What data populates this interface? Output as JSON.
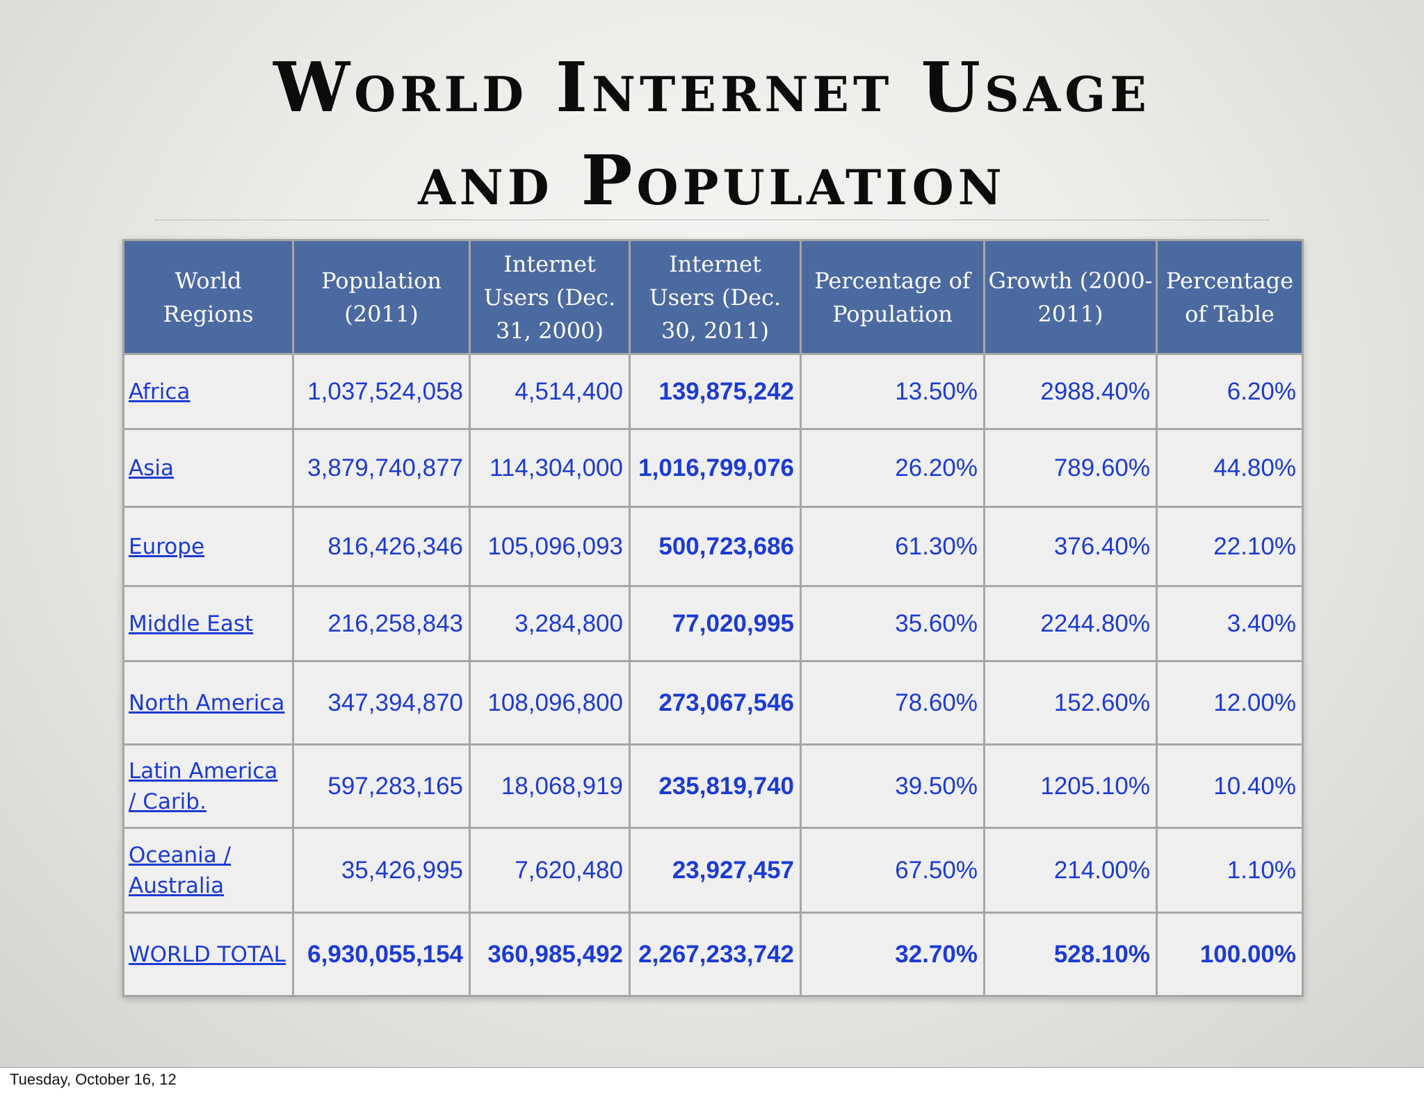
{
  "slide": {
    "title_line1": "World Internet Usage",
    "title_line2": "and Population",
    "footer_date": "Tuesday, October 16, 12"
  },
  "table": {
    "headers": [
      "World Regions",
      "Population (2011)",
      "Internet Users (Dec. 31, 2000)",
      "Internet Users (Dec. 30, 2011)",
      "Percentage of Population",
      "Growth (2000-2011)",
      "Percentage of Table"
    ],
    "rows": [
      {
        "region": "Africa",
        "population": "1,037,524,058",
        "users_2000": "4,514,400",
        "users_2011": "139,875,242",
        "pct_population": "13.50%",
        "growth": "2988.40%",
        "pct_table": "6.20%"
      },
      {
        "region": "Asia",
        "population": "3,879,740,877",
        "users_2000": "114,304,000",
        "users_2011": "1,016,799,076",
        "pct_population": "26.20%",
        "growth": "789.60%",
        "pct_table": "44.80%"
      },
      {
        "region": "Europe",
        "population": "816,426,346",
        "users_2000": "105,096,093",
        "users_2011": "500,723,686",
        "pct_population": "61.30%",
        "growth": "376.40%",
        "pct_table": "22.10%"
      },
      {
        "region": "Middle East",
        "population": "216,258,843",
        "users_2000": "3,284,800",
        "users_2011": "77,020,995",
        "pct_population": "35.60%",
        "growth": "2244.80%",
        "pct_table": "3.40%"
      },
      {
        "region": "North America",
        "population": "347,394,870",
        "users_2000": "108,096,800",
        "users_2011": "273,067,546",
        "pct_population": "78.60%",
        "growth": "152.60%",
        "pct_table": "12.00%"
      },
      {
        "region": "Latin America / Carib.",
        "population": "597,283,165",
        "users_2000": "18,068,919",
        "users_2011": "235,819,740",
        "pct_population": "39.50%",
        "growth": "1205.10%",
        "pct_table": "10.40%"
      },
      {
        "region": "Oceania / Australia",
        "population": "35,426,995",
        "users_2000": "7,620,480",
        "users_2011": "23,927,457",
        "pct_population": "67.50%",
        "growth": "214.00%",
        "pct_table": "1.10%"
      }
    ],
    "total": {
      "region": "WORLD TOTAL",
      "population": "6,930,055,154",
      "users_2000": "360,985,492",
      "users_2011": "2,267,233,742",
      "pct_population": "32.70%",
      "growth": "528.10%",
      "pct_table": "100.00%"
    }
  },
  "colors": {
    "header_bg": "#4b6aa0",
    "header_text": "#ffffff",
    "data_text": "#1c3bd2",
    "grid": "#a6a6a6"
  }
}
